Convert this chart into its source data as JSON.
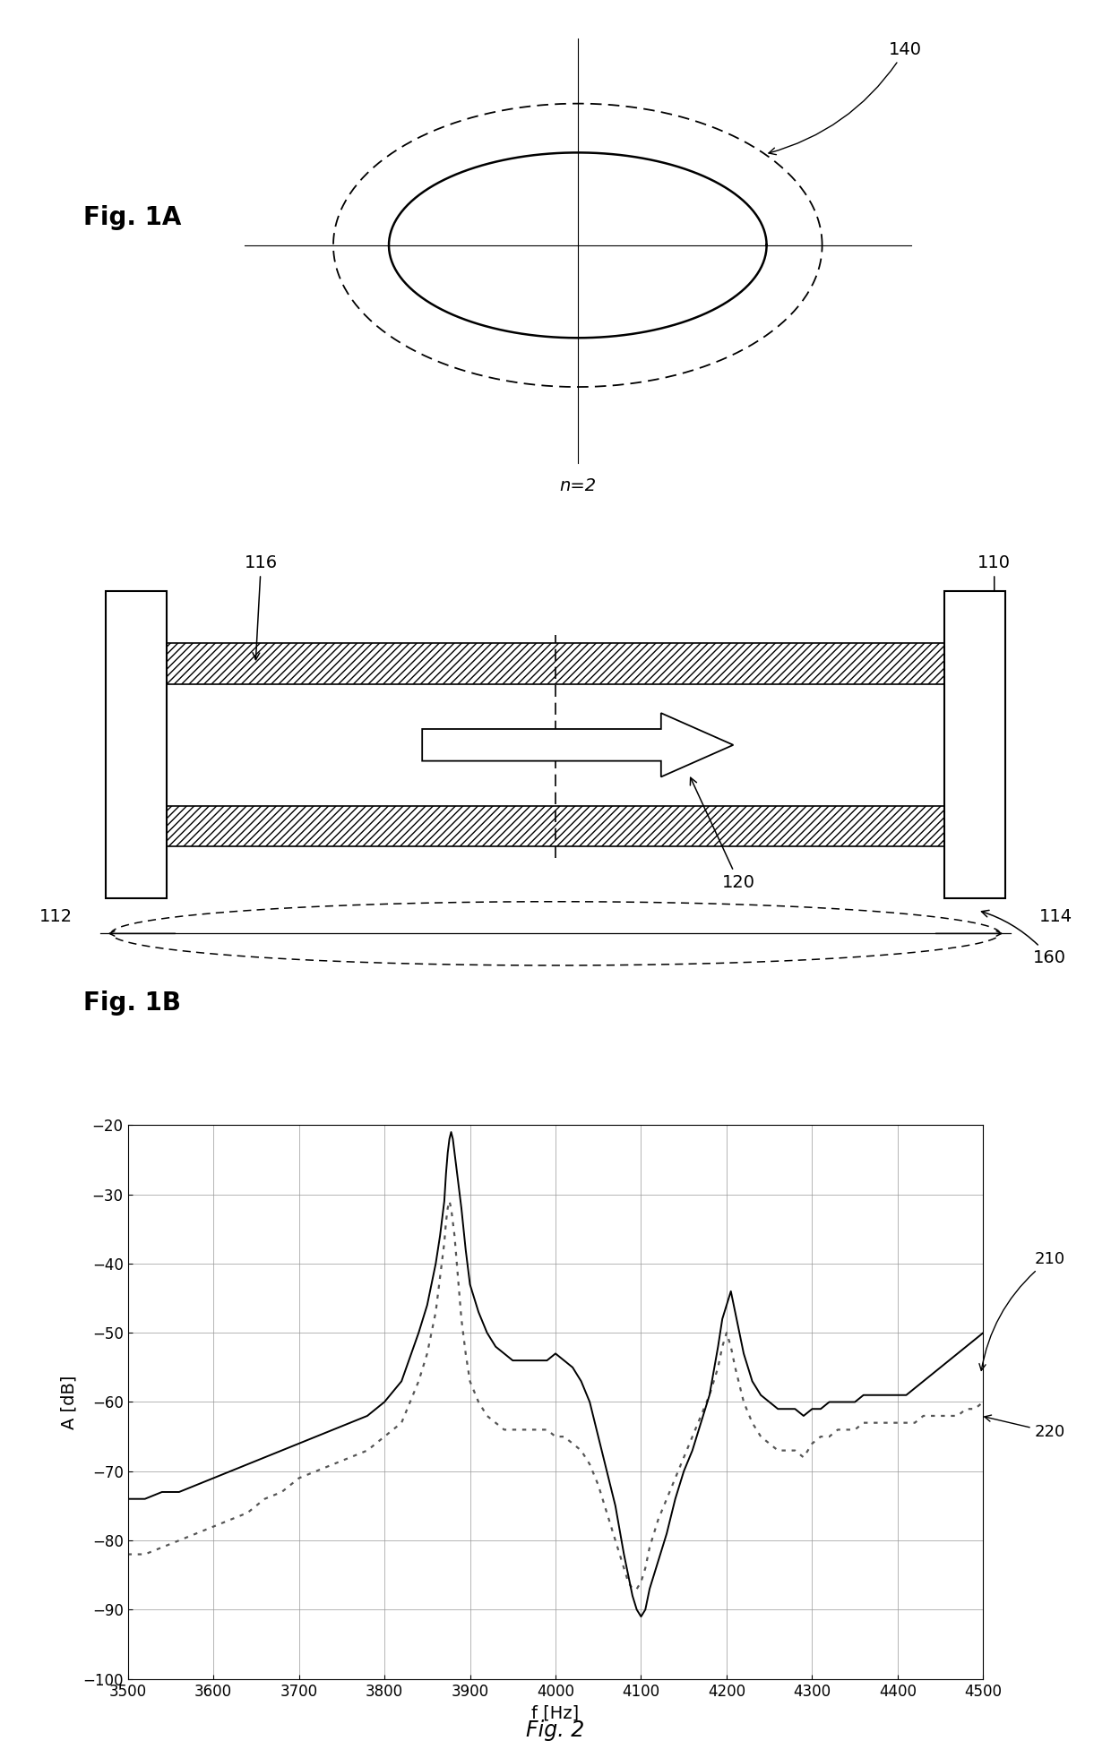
{
  "fig_width": 12.4,
  "fig_height": 19.63,
  "background_color": "#ffffff",
  "fig1a_label": "Fig. 1A",
  "fig1b_label": "Fig. 1B",
  "fig2_label": "Fig. 2",
  "label_140": "140",
  "label_110": "110",
  "label_116": "116",
  "label_112": "112",
  "label_114": "114",
  "label_120": "120",
  "label_160": "160",
  "label_n2": "n=2",
  "label_210": "210",
  "label_220": "220",
  "plot_xlabel": "f [Hz]",
  "plot_ylabel": "A [dB]",
  "plot_xlim": [
    3500,
    4500
  ],
  "plot_ylim": [
    -100,
    -20
  ],
  "plot_xticks": [
    3500,
    3600,
    3700,
    3800,
    3900,
    4000,
    4100,
    4200,
    4300,
    4400,
    4500
  ],
  "plot_yticks": [
    -100,
    -90,
    -80,
    -70,
    -60,
    -50,
    -40,
    -30,
    -20
  ],
  "line210_x": [
    3500,
    3520,
    3540,
    3560,
    3580,
    3600,
    3620,
    3640,
    3660,
    3680,
    3700,
    3720,
    3740,
    3760,
    3780,
    3800,
    3820,
    3840,
    3850,
    3860,
    3865,
    3870,
    3872,
    3874,
    3876,
    3878,
    3880,
    3882,
    3884,
    3886,
    3888,
    3890,
    3895,
    3900,
    3910,
    3920,
    3930,
    3940,
    3950,
    3960,
    3970,
    3975,
    3980,
    3985,
    3990,
    4000,
    4010,
    4020,
    4030,
    4040,
    4050,
    4060,
    4070,
    4080,
    4085,
    4090,
    4095,
    4100,
    4105,
    4110,
    4120,
    4130,
    4140,
    4150,
    4160,
    4170,
    4180,
    4190,
    4195,
    4200,
    4205,
    4210,
    4220,
    4230,
    4240,
    4250,
    4260,
    4270,
    4280,
    4290,
    4300,
    4310,
    4320,
    4330,
    4340,
    4350,
    4360,
    4370,
    4380,
    4390,
    4400,
    4410,
    4420,
    4430,
    4440,
    4450,
    4460,
    4470,
    4480,
    4490,
    4500
  ],
  "line210_y": [
    -74,
    -74,
    -73,
    -73,
    -72,
    -71,
    -70,
    -69,
    -68,
    -67,
    -66,
    -65,
    -64,
    -63,
    -62,
    -60,
    -57,
    -50,
    -46,
    -40,
    -36,
    -31,
    -27,
    -24,
    -22,
    -21,
    -22,
    -24,
    -26,
    -28,
    -30,
    -32,
    -38,
    -43,
    -47,
    -50,
    -52,
    -53,
    -54,
    -54,
    -54,
    -54,
    -54,
    -54,
    -54,
    -53,
    -54,
    -55,
    -57,
    -60,
    -65,
    -70,
    -75,
    -82,
    -85,
    -88,
    -90,
    -91,
    -90,
    -87,
    -83,
    -79,
    -74,
    -70,
    -67,
    -63,
    -59,
    -52,
    -48,
    -46,
    -44,
    -47,
    -53,
    -57,
    -59,
    -60,
    -61,
    -61,
    -61,
    -62,
    -61,
    -61,
    -60,
    -60,
    -60,
    -60,
    -59,
    -59,
    -59,
    -59,
    -59,
    -59,
    -58,
    -57,
    -56,
    -55,
    -54,
    -53,
    -52,
    -51,
    -50
  ],
  "line220_x": [
    3500,
    3520,
    3540,
    3560,
    3580,
    3600,
    3620,
    3640,
    3660,
    3680,
    3700,
    3720,
    3740,
    3760,
    3780,
    3800,
    3820,
    3840,
    3850,
    3860,
    3865,
    3870,
    3872,
    3874,
    3876,
    3878,
    3880,
    3882,
    3884,
    3886,
    3888,
    3890,
    3895,
    3900,
    3910,
    3920,
    3930,
    3940,
    3950,
    3960,
    3970,
    3975,
    3980,
    3985,
    3990,
    4000,
    4010,
    4020,
    4030,
    4040,
    4050,
    4060,
    4070,
    4080,
    4085,
    4090,
    4095,
    4100,
    4105,
    4110,
    4120,
    4130,
    4140,
    4150,
    4160,
    4170,
    4180,
    4190,
    4195,
    4200,
    4205,
    4210,
    4220,
    4230,
    4240,
    4250,
    4260,
    4270,
    4280,
    4290,
    4300,
    4310,
    4320,
    4330,
    4340,
    4350,
    4360,
    4370,
    4380,
    4390,
    4400,
    4410,
    4420,
    4430,
    4440,
    4450,
    4460,
    4470,
    4480,
    4490,
    4500
  ],
  "line220_y": [
    -82,
    -82,
    -81,
    -80,
    -79,
    -78,
    -77,
    -76,
    -74,
    -73,
    -71,
    -70,
    -69,
    -68,
    -67,
    -65,
    -63,
    -57,
    -53,
    -47,
    -42,
    -37,
    -34,
    -32,
    -31,
    -32,
    -34,
    -36,
    -39,
    -42,
    -45,
    -48,
    -53,
    -57,
    -60,
    -62,
    -63,
    -64,
    -64,
    -64,
    -64,
    -64,
    -64,
    -64,
    -64,
    -65,
    -65,
    -66,
    -67,
    -69,
    -72,
    -76,
    -80,
    -84,
    -86,
    -87,
    -87,
    -86,
    -84,
    -81,
    -77,
    -74,
    -71,
    -68,
    -65,
    -62,
    -59,
    -55,
    -52,
    -50,
    -52,
    -55,
    -60,
    -63,
    -65,
    -66,
    -67,
    -67,
    -67,
    -68,
    -66,
    -65,
    -65,
    -64,
    -64,
    -64,
    -63,
    -63,
    -63,
    -63,
    -63,
    -63,
    -63,
    -62,
    -62,
    -62,
    -62,
    -62,
    -61,
    -61,
    -60
  ],
  "line_color_210": "#000000",
  "line_color_220": "#555555"
}
